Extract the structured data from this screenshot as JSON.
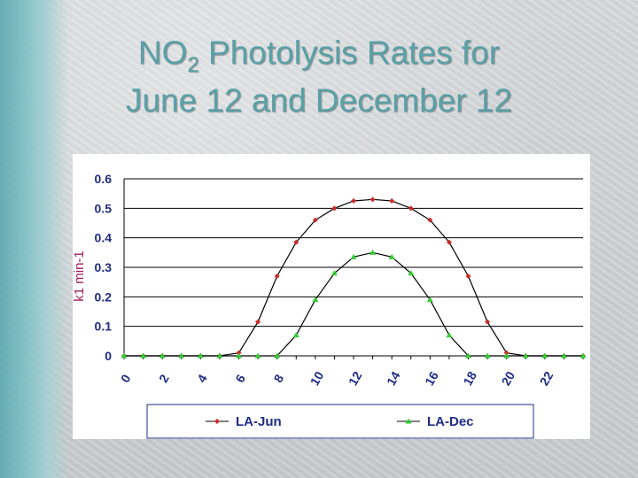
{
  "slide": {
    "title_main": "NO",
    "title_sub": "2",
    "title_rest": " Photolysis Rates for",
    "title_line2": "June 12 and December 12"
  },
  "colors": {
    "title": "#5aa1a6",
    "axis_text": "#1f2d86",
    "ylabel": "#a21a58",
    "jun_marker": "#cc2a2a",
    "dec_marker": "#33cc33",
    "line": "#000000"
  },
  "chart_data": {
    "type": "line",
    "title": "",
    "xlabel": "",
    "ylabel": "k1 min-1",
    "ylim": [
      0,
      0.6
    ],
    "xlim": [
      0,
      24
    ],
    "y_ticks": [
      "0",
      "0.1",
      "0.2",
      "0.3",
      "0.4",
      "0.5",
      "0.6"
    ],
    "x_ticks": [
      "0",
      "2",
      "4",
      "6",
      "8",
      "10",
      "12",
      "14",
      "16",
      "18",
      "20",
      "22"
    ],
    "grid": true,
    "legend_position": "bottom",
    "x": [
      0,
      1,
      2,
      3,
      4,
      5,
      6,
      7,
      8,
      9,
      10,
      11,
      12,
      13,
      14,
      15,
      16,
      17,
      18,
      19,
      20,
      21,
      22,
      23,
      24
    ],
    "series": [
      {
        "name": "LA-Jun",
        "marker": "diamond",
        "values": [
          0,
          0,
          0,
          0,
          0,
          0,
          0.01,
          0.115,
          0.27,
          0.385,
          0.46,
          0.5,
          0.525,
          0.53,
          0.525,
          0.5,
          0.46,
          0.385,
          0.27,
          0.115,
          0.01,
          0,
          0,
          0,
          0
        ]
      },
      {
        "name": "LA-Dec",
        "marker": "triangle",
        "values": [
          0,
          0,
          0,
          0,
          0,
          0,
          0,
          0,
          0,
          0.07,
          0.19,
          0.28,
          0.335,
          0.35,
          0.335,
          0.28,
          0.19,
          0.07,
          0,
          0,
          0,
          0,
          0,
          0,
          0
        ]
      }
    ]
  }
}
